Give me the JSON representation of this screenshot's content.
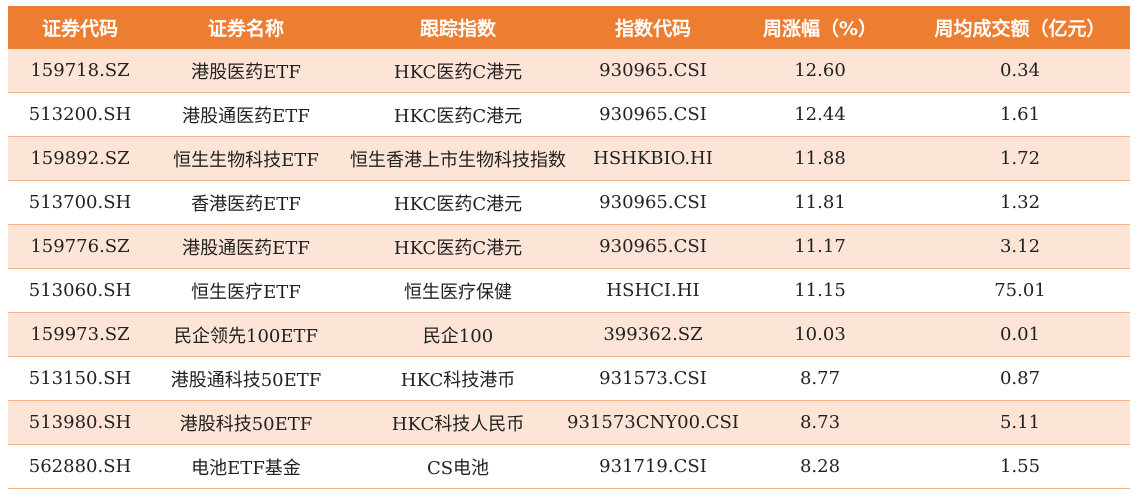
{
  "colors": {
    "header_bg": "#ED7D31",
    "header_text": "#FFFFFF",
    "alt_row": "#FCE4D6",
    "border": "#F4B183"
  },
  "table": {
    "headers": [
      "证券代码",
      "证券名称",
      "跟踪指数",
      "指数代码",
      "周涨幅（%）",
      "周均成交额（亿元）"
    ],
    "rows": [
      [
        "159718.SZ",
        "港股医药ETF",
        "HKC医药C港元",
        "930965.CSI",
        "12.60",
        "0.34"
      ],
      [
        "513200.SH",
        "港股通医药ETF",
        "HKC医药C港元",
        "930965.CSI",
        "12.44",
        "1.61"
      ],
      [
        "159892.SZ",
        "恒生生物科技ETF",
        "恒生香港上市生物科技指数",
        "HSHKBIO.HI",
        "11.88",
        "1.72"
      ],
      [
        "513700.SH",
        "香港医药ETF",
        "HKC医药C港元",
        "930965.CSI",
        "11.81",
        "1.32"
      ],
      [
        "159776.SZ",
        "港股通医药ETF",
        "HKC医药C港元",
        "930965.CSI",
        "11.17",
        "3.12"
      ],
      [
        "513060.SH",
        "恒生医疗ETF",
        "恒生医疗保健",
        "HSHCI.HI",
        "11.15",
        "75.01"
      ],
      [
        "159973.SZ",
        "民企领先100ETF",
        "民企100",
        "399362.SZ",
        "10.03",
        "0.01"
      ],
      [
        "513150.SH",
        "港股通科技50ETF",
        "HKC科技港币",
        "931573.CSI",
        "8.77",
        "0.87"
      ],
      [
        "513980.SH",
        "港股科技50ETF",
        "HKC科技人民币",
        "931573CNY00.CSI",
        "8.73",
        "5.11"
      ],
      [
        "562880.SH",
        "电池ETF基金",
        "CS电池",
        "931719.CSI",
        "8.28",
        "1.55"
      ]
    ]
  }
}
